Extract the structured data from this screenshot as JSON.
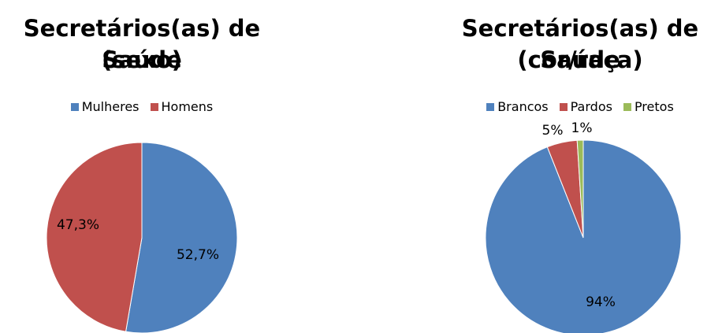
{
  "chart_data": [
    {
      "type": "pie",
      "title": [
        "Secretários(as) de Saúde",
        "(sexo)"
      ],
      "legend": "top",
      "slices": [
        {
          "name": "Mulheres",
          "value": 52.7,
          "label": "52,7%",
          "color": "#4F81BD"
        },
        {
          "name": "Homens",
          "value": 47.3,
          "label": "47,3%",
          "color": "#C0504D"
        }
      ]
    },
    {
      "type": "pie",
      "title": [
        "Secretários(as) de Saúde",
        "(cor/raça)"
      ],
      "legend": "top",
      "slices": [
        {
          "name": "Brancos",
          "value": 94,
          "label": "94%",
          "color": "#4F81BD"
        },
        {
          "name": "Pardos",
          "value": 5,
          "label": "5%",
          "color": "#C0504D"
        },
        {
          "name": "Pretos",
          "value": 1,
          "label": "1%",
          "color": "#9BBB59"
        }
      ]
    }
  ]
}
